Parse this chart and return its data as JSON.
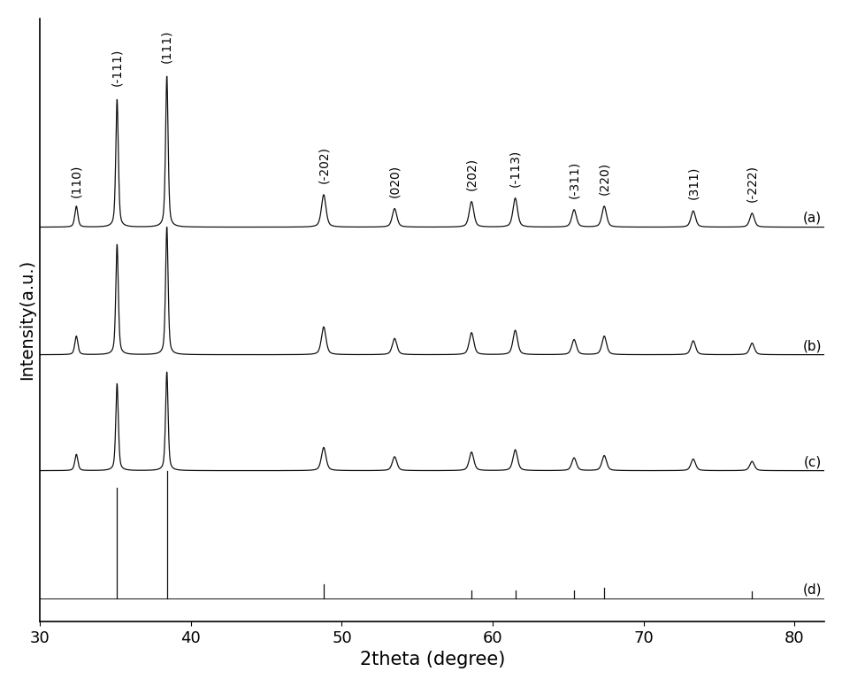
{
  "title": "",
  "xlabel": "2theta (degree)",
  "ylabel": "Intensity(a.u.)",
  "xlim": [
    30,
    82
  ],
  "x_ticks": [
    30,
    40,
    50,
    60,
    70,
    80
  ],
  "background_color": "#ffffff",
  "line_color": "#111111",
  "series_labels": [
    "(a)",
    "(b)",
    "(c)",
    "(d)"
  ],
  "peak_positions": {
    "110": 32.4,
    "-111": 35.1,
    "111": 38.4,
    "-202": 48.8,
    "020": 53.5,
    "202": 58.6,
    "-113": 61.5,
    "-311": 65.4,
    "220": 67.4,
    "311": 73.3,
    "-222": 77.2
  },
  "peak_heights_a": {
    "110": 0.18,
    "-111": 1.1,
    "111": 1.3,
    "-202": 0.28,
    "020": 0.16,
    "202": 0.22,
    "-113": 0.25,
    "-311": 0.15,
    "220": 0.18,
    "311": 0.14,
    "-222": 0.12
  },
  "peak_heights_b": {
    "110": 0.16,
    "-111": 0.95,
    "111": 1.1,
    "-202": 0.24,
    "020": 0.14,
    "202": 0.19,
    "-113": 0.21,
    "-311": 0.13,
    "220": 0.16,
    "311": 0.12,
    "-222": 0.1
  },
  "peak_heights_c": {
    "110": 0.14,
    "-111": 0.75,
    "111": 0.85,
    "-202": 0.2,
    "020": 0.12,
    "202": 0.16,
    "-113": 0.18,
    "-311": 0.11,
    "220": 0.13,
    "311": 0.1,
    "-222": 0.08
  },
  "peak_heights_d": {
    "-111": 0.95,
    "111": 1.1,
    "-202": 0.12,
    "202": 0.07,
    "-113": 0.065,
    "-311": 0.07,
    "220": 0.09,
    "-222": 0.055
  },
  "offsets": [
    3.2,
    2.1,
    1.1,
    0.0
  ],
  "peak_widths": {
    "110": 0.12,
    "-111": 0.1,
    "111": 0.1,
    "-202": 0.18,
    "020": 0.18,
    "202": 0.18,
    "-113": 0.18,
    "-311": 0.18,
    "220": 0.18,
    "311": 0.18,
    "-222": 0.18
  },
  "font_size_labels": 14,
  "font_size_ticks": 13,
  "font_size_annotations": 10,
  "line_width": 0.9
}
